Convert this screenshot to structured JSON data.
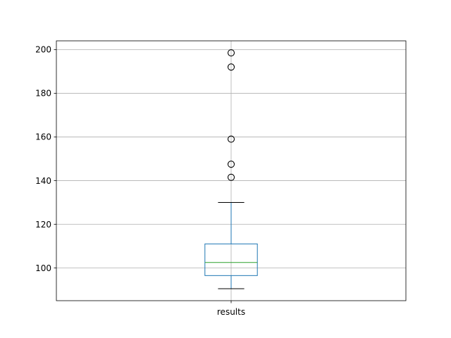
{
  "chart_data": {
    "type": "box",
    "title": "",
    "xlabel": "",
    "ylabel": "",
    "categories": [
      "results"
    ],
    "ylim": [
      85,
      204
    ],
    "y_ticks": [
      100,
      120,
      140,
      160,
      180,
      200
    ],
    "grid": true,
    "colors": {
      "box": "#1f77b4",
      "median": "#2ca02c",
      "whisker": "#1f77b4",
      "cap": "#000000",
      "flier": "#000000",
      "grid": "#b0b0b0",
      "axes": "#000000"
    },
    "boxes": [
      {
        "category": "results",
        "whisker_low": 90.5,
        "q1": 96.5,
        "median": 102.5,
        "q3": 111.0,
        "whisker_high": 130.0,
        "outliers": [
          141.5,
          147.5,
          159.0,
          192.0,
          198.5
        ]
      }
    ]
  }
}
